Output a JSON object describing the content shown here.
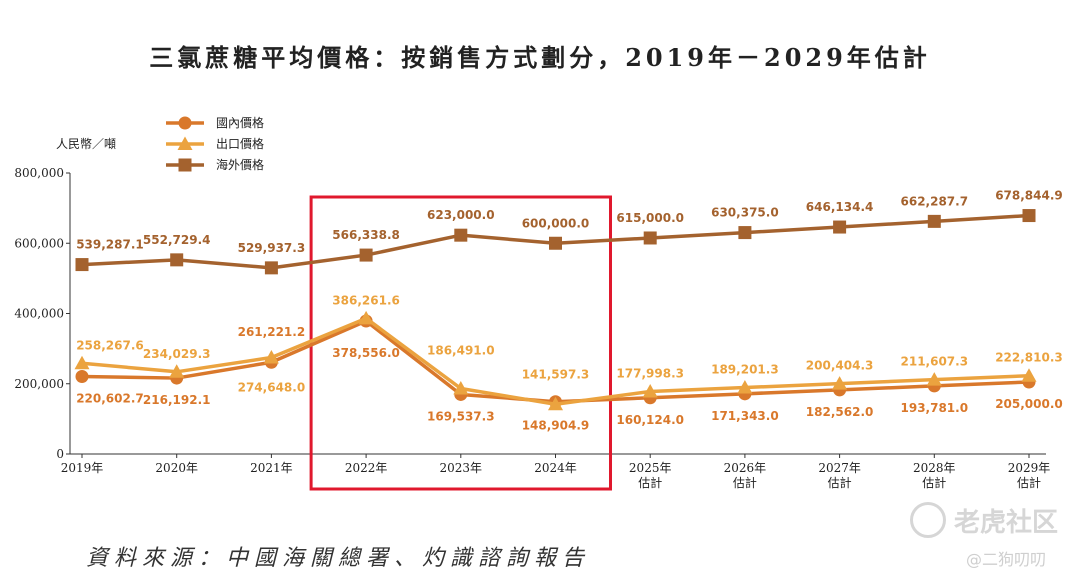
{
  "title": "三氯蔗糖平均價格：按銷售方式劃分，2019年－2029年估計",
  "source": "資料來源：中國海關總署、灼識諮詢報告",
  "watermark": {
    "brand": "老虎社区",
    "user": "@二狗叨叨"
  },
  "colors": {
    "domestic": "#D9782B",
    "export": "#EBA33F",
    "overseas": "#A4622E",
    "highlight": "#E0182D",
    "axis": "#333333"
  },
  "chart_data": {
    "type": "line",
    "ylabel": "人民幣／噸",
    "ylim": [
      0,
      800000
    ],
    "yticks": [
      "0",
      "200,000",
      "400,000",
      "600,000",
      "800,000"
    ],
    "ytick_values": [
      0,
      200000,
      400000,
      600000,
      800000
    ],
    "categories": [
      [
        "2019年"
      ],
      [
        "2020年"
      ],
      [
        "2021年"
      ],
      [
        "2022年"
      ],
      [
        "2023年"
      ],
      [
        "2024年"
      ],
      [
        "2025年",
        "估計"
      ],
      [
        "2026年",
        "估計"
      ],
      [
        "2027年",
        "估計"
      ],
      [
        "2028年",
        "估計"
      ],
      [
        "2029年",
        "估計"
      ]
    ],
    "legend_position": "top-left",
    "highlight_range": [
      "2022年",
      "2024年"
    ],
    "series": [
      {
        "name": "國內價格",
        "marker": "circle",
        "color_key": "domestic",
        "values": [
          220602.7,
          216192.1,
          261221.2,
          378556.0,
          169537.3,
          148904.9,
          160124.0,
          171343.0,
          182562.0,
          193781.0,
          205000.0
        ],
        "labels": [
          "220,602.7",
          "216,192.1",
          "261,221.2",
          "378,556.0",
          "169,537.3",
          "148,904.9",
          "160,124.0",
          "171,343.0",
          "182,562.0",
          "193,781.0",
          "205,000.0"
        ]
      },
      {
        "name": "出口價格",
        "marker": "triangle",
        "color_key": "export",
        "values": [
          258267.6,
          234029.3,
          274648.0,
          386261.6,
          186491.0,
          141597.3,
          177998.3,
          189201.3,
          200404.3,
          211607.3,
          222810.3
        ],
        "labels": [
          "258,267.6",
          "234,029.3",
          "274,648.0",
          "386,261.6",
          "186,491.0",
          "141,597.3",
          "177,998.3",
          "189,201.3",
          "200,404.3",
          "211,607.3",
          "222,810.3"
        ]
      },
      {
        "name": "海外價格",
        "marker": "square",
        "color_key": "overseas",
        "values": [
          539287.1,
          552729.4,
          529937.3,
          566338.8,
          623000.0,
          600000.0,
          615000.0,
          630375.0,
          646134.4,
          662287.7,
          678844.9
        ],
        "labels": [
          "539,287.1",
          "552,729.4",
          "529,937.3",
          "566,338.8",
          "623,000.0",
          "600,000.0",
          "615,000.0",
          "630,375.0",
          "646,134.4",
          "662,287.7",
          "678,844.9"
        ]
      }
    ]
  }
}
